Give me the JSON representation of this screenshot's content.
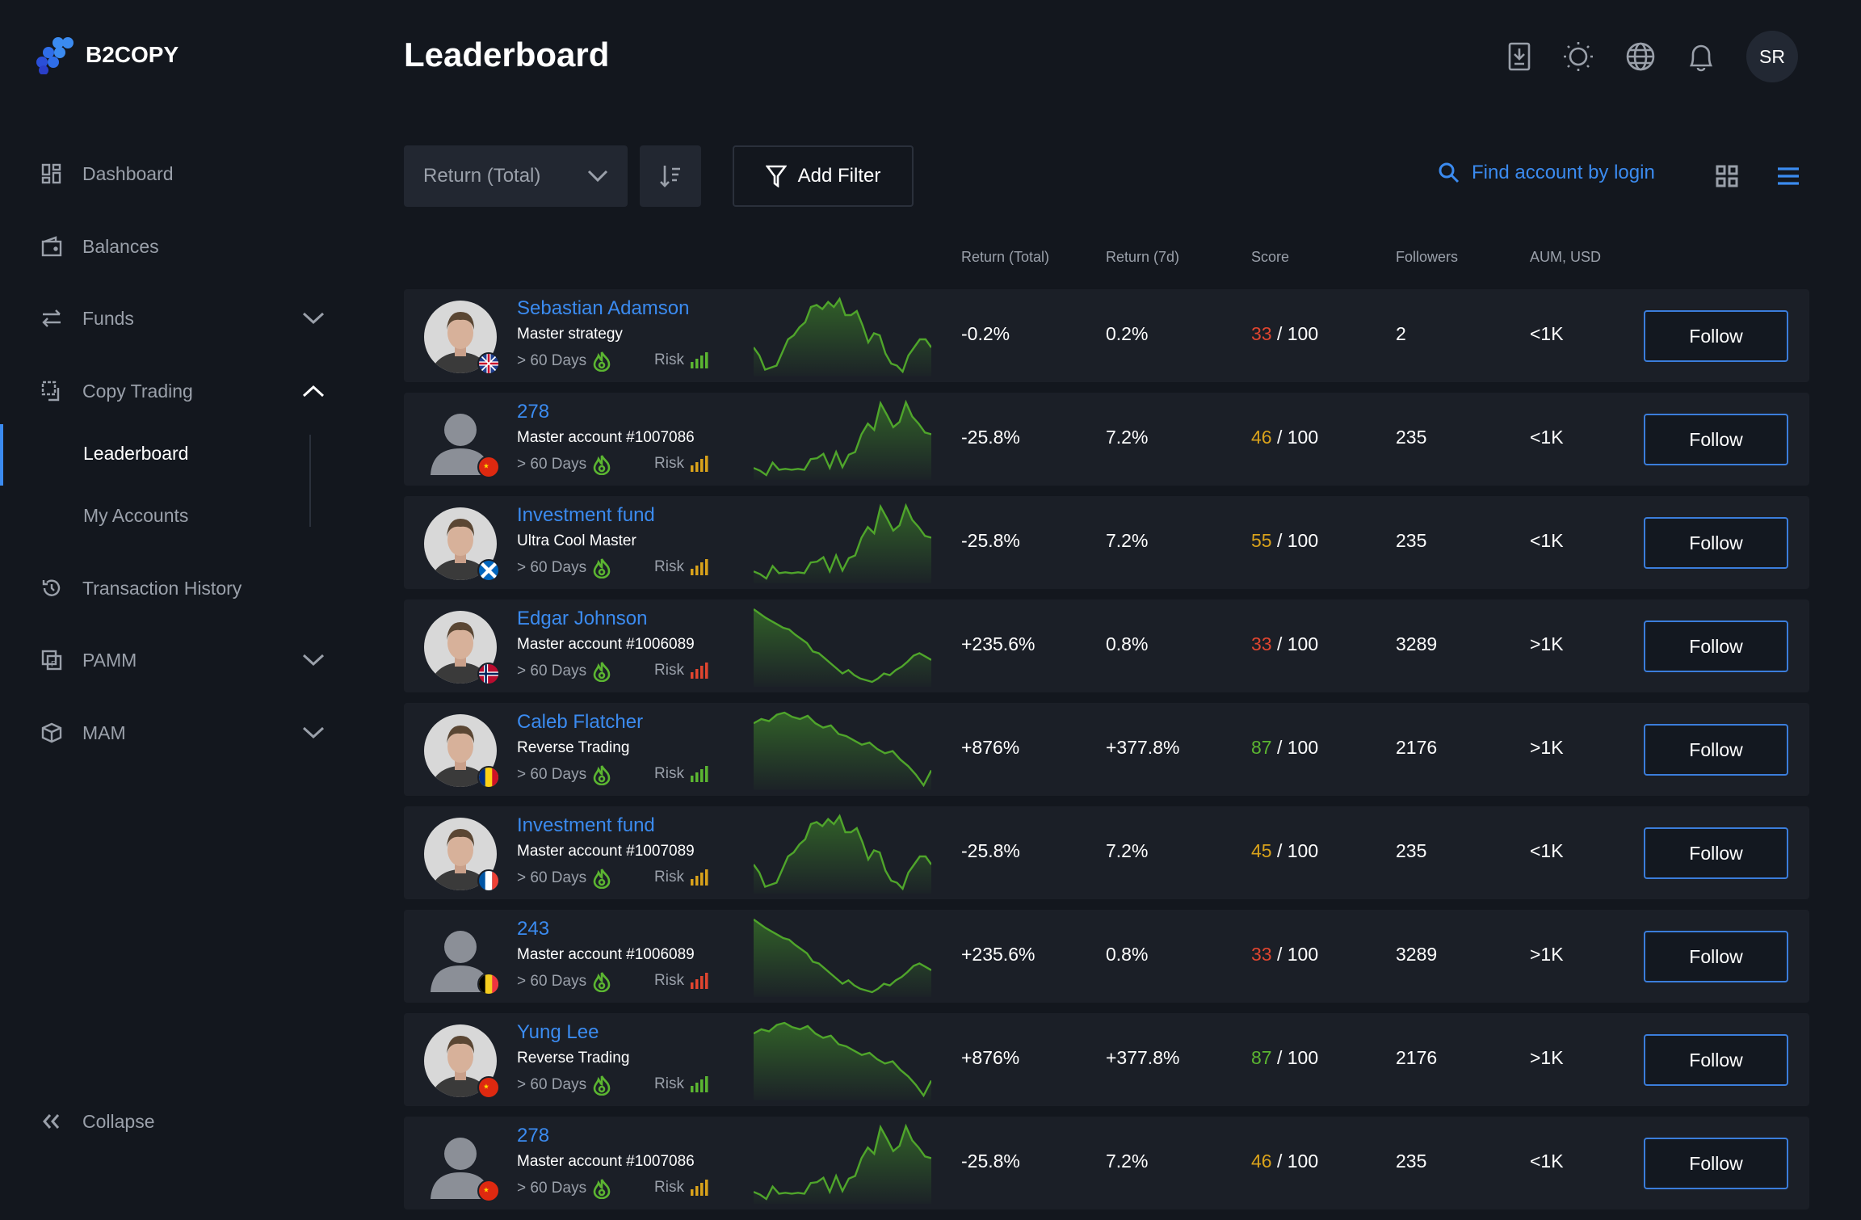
{
  "brand": {
    "name": "B2COPY",
    "accent": "#3b8bf0"
  },
  "sidebar": {
    "items": [
      {
        "label": "Dashboard",
        "icon": "dashboard-icon"
      },
      {
        "label": "Balances",
        "icon": "wallet-icon"
      },
      {
        "label": "Funds",
        "icon": "transfer-icon",
        "expandable": true
      },
      {
        "label": "Copy Trading",
        "icon": "copy-trading-icon",
        "expanded": true,
        "children": [
          {
            "label": "Leaderboard",
            "active": true
          },
          {
            "label": "My Accounts"
          }
        ]
      },
      {
        "label": "Transaction History",
        "icon": "history-icon"
      },
      {
        "label": "PAMM",
        "icon": "pamm-icon",
        "expandable": true
      },
      {
        "label": "MAM",
        "icon": "mam-icon",
        "expandable": true
      }
    ],
    "collapse": "Collapse"
  },
  "header": {
    "title": "Leaderboard",
    "user_initials": "SR",
    "icons": [
      "download-icon",
      "sun-icon",
      "globe-icon",
      "bell-icon"
    ]
  },
  "toolbar": {
    "sort_select": "Return (Total)",
    "add_filter": "Add Filter",
    "search_label": "Find account by login",
    "view_modes": [
      "grid",
      "list"
    ],
    "active_view": "list"
  },
  "columns": [
    "Return (Total)",
    "Return (7d)",
    "Score",
    "Followers",
    "AUM, USD"
  ],
  "colors": {
    "score_low": "#e0452f",
    "score_mid": "#d9a21b",
    "score_high": "#5bb531",
    "risk_low": "#5bb531",
    "risk_mid": "#d9a21b",
    "risk_high": "#e0452f",
    "chart_line": "#4fa52b"
  },
  "sparks": {
    "a": [
      30,
      22,
      8,
      10,
      12,
      25,
      38,
      42,
      50,
      55,
      70,
      72,
      68,
      75,
      70,
      78,
      62,
      62,
      66,
      52,
      35,
      44,
      42,
      24,
      14,
      12,
      6,
      22,
      30,
      38,
      38,
      30
    ],
    "b": [
      12,
      9,
      4,
      18,
      10,
      11,
      10,
      11,
      10,
      22,
      23,
      28,
      12,
      30,
      13,
      27,
      30,
      50,
      62,
      55,
      85,
      72,
      58,
      64,
      86,
      70,
      62,
      52,
      50
    ],
    "c": [
      90,
      85,
      80,
      76,
      72,
      68,
      66,
      60,
      55,
      50,
      40,
      38,
      32,
      26,
      20,
      14,
      18,
      12,
      8,
      6,
      4,
      8,
      14,
      12,
      18,
      22,
      28,
      35,
      38,
      34,
      30
    ],
    "d": [
      70,
      74,
      72,
      78,
      80,
      76,
      74,
      77,
      70,
      66,
      68,
      60,
      58,
      54,
      50,
      52,
      46,
      42,
      44,
      36,
      30,
      22,
      12,
      26
    ]
  },
  "rows": [
    {
      "name": "Sebastian Adamson",
      "desc": "Master strategy",
      "days": "> 60 Days",
      "risk_label": "Risk",
      "risk": "low",
      "spark": "a",
      "return_total": "-0.2%",
      "return_7d": "0.2%",
      "score": "33",
      "score_level": "low",
      "score_max": "/ 100",
      "followers": "2",
      "aum": "<1K",
      "follow": "Follow",
      "photo": true,
      "flag": "uk"
    },
    {
      "name": "278",
      "desc": "Master account #1007086",
      "days": "> 60 Days",
      "risk_label": "Risk",
      "risk": "mid",
      "spark": "b",
      "return_total": "-25.8%",
      "return_7d": "7.2%",
      "score": "46",
      "score_level": "mid",
      "score_max": "/ 100",
      "followers": "235",
      "aum": "<1K",
      "follow": "Follow",
      "photo": false,
      "flag": "cn"
    },
    {
      "name": "Investment fund",
      "desc": "Ultra Cool Master",
      "days": "> 60 Days",
      "risk_label": "Risk",
      "risk": "mid",
      "spark": "b",
      "return_total": "-25.8%",
      "return_7d": "7.2%",
      "score": "55",
      "score_level": "mid",
      "score_max": "/ 100",
      "followers": "235",
      "aum": "<1K",
      "follow": "Follow",
      "photo": true,
      "flag": "scotland"
    },
    {
      "name": "Edgar Johnson",
      "desc": "Master account #1006089",
      "days": "> 60 Days",
      "risk_label": "Risk",
      "risk": "high",
      "spark": "c",
      "return_total": "+235.6%",
      "return_7d": "0.8%",
      "score": "33",
      "score_level": "low",
      "score_max": "/ 100",
      "followers": "3289",
      "aum": ">1K",
      "follow": "Follow",
      "photo": true,
      "flag": "no"
    },
    {
      "name": "Caleb Flatcher",
      "desc": "Reverse Trading",
      "days": "> 60 Days",
      "risk_label": "Risk",
      "risk": "low",
      "spark": "d",
      "return_total": "+876%",
      "return_7d": "+377.8%",
      "score": "87",
      "score_level": "high",
      "score_max": "/ 100",
      "followers": "2176",
      "aum": ">1K",
      "follow": "Follow",
      "photo": true,
      "flag": "ro"
    },
    {
      "name": "Investment fund",
      "desc": "Master account #1007089",
      "days": "> 60 Days",
      "risk_label": "Risk",
      "risk": "mid",
      "spark": "a",
      "return_total": "-25.8%",
      "return_7d": "7.2%",
      "score": "45",
      "score_level": "mid",
      "score_max": "/ 100",
      "followers": "235",
      "aum": "<1K",
      "follow": "Follow",
      "photo": true,
      "flag": "fr"
    },
    {
      "name": "243",
      "desc": "Master account #1006089",
      "days": "> 60 Days",
      "risk_label": "Risk",
      "risk": "high",
      "spark": "c",
      "return_total": "+235.6%",
      "return_7d": "0.8%",
      "score": "33",
      "score_level": "low",
      "score_max": "/ 100",
      "followers": "3289",
      "aum": ">1K",
      "follow": "Follow",
      "photo": false,
      "flag": "be"
    },
    {
      "name": "Yung Lee",
      "desc": "Reverse Trading",
      "days": "> 60 Days",
      "risk_label": "Risk",
      "risk": "low",
      "spark": "d",
      "return_total": "+876%",
      "return_7d": "+377.8%",
      "score": "87",
      "score_level": "high",
      "score_max": "/ 100",
      "followers": "2176",
      "aum": ">1K",
      "follow": "Follow",
      "photo": true,
      "flag": "cn"
    },
    {
      "name": "278",
      "desc": "Master account #1007086",
      "days": "> 60 Days",
      "risk_label": "Risk",
      "risk": "mid",
      "spark": "b",
      "return_total": "-25.8%",
      "return_7d": "7.2%",
      "score": "46",
      "score_level": "mid",
      "score_max": "/ 100",
      "followers": "235",
      "aum": "<1K",
      "follow": "Follow",
      "photo": false,
      "flag": "cn"
    }
  ]
}
